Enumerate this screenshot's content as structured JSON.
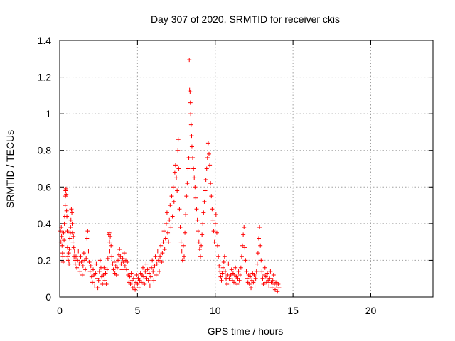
{
  "chart_data": {
    "type": "scatter",
    "title": "Day 307 of 2020, SRMTID for receiver ckis",
    "xlabel": "GPS time / hours",
    "ylabel": "SRMTID / TECUs",
    "xlim": [
      0,
      24
    ],
    "ylim": [
      0,
      1.4
    ],
    "xticks": [
      0,
      5,
      10,
      15,
      20
    ],
    "xtick_labels": [
      "0",
      "5",
      "10",
      "15",
      "20"
    ],
    "yticks": [
      0,
      0.2,
      0.4,
      0.6,
      0.8,
      1.0,
      1.2,
      1.4
    ],
    "ytick_labels": [
      "0",
      "0.2",
      "0.4",
      "0.6",
      "0.8",
      "1",
      "1.2",
      "1.4"
    ],
    "grid": true,
    "marker": "plus",
    "color": "#ff0000",
    "series": [
      {
        "name": "SRMTID",
        "points": [
          [
            0.05,
            0.36
          ],
          [
            0.08,
            0.3
          ],
          [
            0.1,
            0.38
          ],
          [
            0.12,
            0.33
          ],
          [
            0.15,
            0.28
          ],
          [
            0.18,
            0.24
          ],
          [
            0.2,
            0.22
          ],
          [
            0.22,
            0.19
          ],
          [
            0.25,
            0.35
          ],
          [
            0.28,
            0.31
          ],
          [
            0.3,
            0.4
          ],
          [
            0.32,
            0.44
          ],
          [
            0.35,
            0.5
          ],
          [
            0.37,
            0.55
          ],
          [
            0.38,
            0.58
          ],
          [
            0.4,
            0.59
          ],
          [
            0.42,
            0.56
          ],
          [
            0.44,
            0.47
          ],
          [
            0.46,
            0.44
          ],
          [
            0.48,
            0.36
          ],
          [
            0.5,
            0.27
          ],
          [
            0.52,
            0.22
          ],
          [
            0.55,
            0.2
          ],
          [
            0.58,
            0.24
          ],
          [
            0.6,
            0.18
          ],
          [
            0.62,
            0.26
          ],
          [
            0.65,
            0.32
          ],
          [
            0.68,
            0.35
          ],
          [
            0.7,
            0.38
          ],
          [
            0.72,
            0.42
          ],
          [
            0.75,
            0.48
          ],
          [
            0.78,
            0.46
          ],
          [
            0.8,
            0.4
          ],
          [
            0.82,
            0.35
          ],
          [
            0.85,
            0.3
          ],
          [
            0.88,
            0.33
          ],
          [
            0.9,
            0.27
          ],
          [
            0.92,
            0.22
          ],
          [
            0.95,
            0.25
          ],
          [
            0.98,
            0.2
          ],
          [
            1.0,
            0.18
          ],
          [
            1.05,
            0.22
          ],
          [
            1.1,
            0.16
          ],
          [
            1.15,
            0.2
          ],
          [
            1.2,
            0.25
          ],
          [
            1.25,
            0.18
          ],
          [
            1.3,
            0.14
          ],
          [
            1.35,
            0.22
          ],
          [
            1.4,
            0.19
          ],
          [
            1.45,
            0.12
          ],
          [
            1.5,
            0.17
          ],
          [
            1.55,
            0.24
          ],
          [
            1.6,
            0.2
          ],
          [
            1.65,
            0.15
          ],
          [
            1.7,
            0.21
          ],
          [
            1.75,
            0.32
          ],
          [
            1.8,
            0.36
          ],
          [
            1.85,
            0.25
          ],
          [
            1.9,
            0.19
          ],
          [
            1.95,
            0.14
          ],
          [
            2.0,
            0.17
          ],
          [
            2.05,
            0.11
          ],
          [
            2.1,
            0.08
          ],
          [
            2.15,
            0.15
          ],
          [
            2.2,
            0.12
          ],
          [
            2.25,
            0.06
          ],
          [
            2.3,
            0.13
          ],
          [
            2.35,
            0.18
          ],
          [
            2.4,
            0.1
          ],
          [
            2.45,
            0.05
          ],
          [
            2.5,
            0.09
          ],
          [
            2.55,
            0.14
          ],
          [
            2.6,
            0.2
          ],
          [
            2.65,
            0.16
          ],
          [
            2.7,
            0.11
          ],
          [
            2.75,
            0.07
          ],
          [
            2.8,
            0.12
          ],
          [
            2.85,
            0.16
          ],
          [
            2.9,
            0.09
          ],
          [
            2.95,
            0.13
          ],
          [
            3.0,
            0.07
          ],
          [
            3.05,
            0.15
          ],
          [
            3.1,
            0.21
          ],
          [
            3.15,
            0.34
          ],
          [
            3.18,
            0.35
          ],
          [
            3.2,
            0.3
          ],
          [
            3.22,
            0.25
          ],
          [
            3.25,
            0.33
          ],
          [
            3.3,
            0.28
          ],
          [
            3.35,
            0.22
          ],
          [
            3.4,
            0.18
          ],
          [
            3.45,
            0.15
          ],
          [
            3.5,
            0.19
          ],
          [
            3.55,
            0.13
          ],
          [
            3.6,
            0.17
          ],
          [
            3.65,
            0.12
          ],
          [
            3.7,
            0.16
          ],
          [
            3.75,
            0.2
          ],
          [
            3.8,
            0.23
          ],
          [
            3.85,
            0.26
          ],
          [
            3.9,
            0.22
          ],
          [
            3.95,
            0.18
          ],
          [
            4.0,
            0.15
          ],
          [
            4.05,
            0.21
          ],
          [
            4.1,
            0.19
          ],
          [
            4.15,
            0.24
          ],
          [
            4.2,
            0.17
          ],
          [
            4.25,
            0.2
          ],
          [
            4.3,
            0.15
          ],
          [
            4.35,
            0.19
          ],
          [
            4.4,
            0.12
          ],
          [
            4.45,
            0.08
          ],
          [
            4.5,
            0.11
          ],
          [
            4.55,
            0.07
          ],
          [
            4.6,
            0.13
          ],
          [
            4.65,
            0.09
          ],
          [
            4.7,
            0.05
          ],
          [
            4.75,
            0.1
          ],
          [
            4.8,
            0.06
          ],
          [
            4.85,
            0.04
          ],
          [
            4.9,
            0.08
          ],
          [
            4.95,
            0.12
          ],
          [
            5.0,
            0.07
          ],
          [
            5.05,
            0.1
          ],
          [
            5.1,
            0.05
          ],
          [
            5.15,
            0.09
          ],
          [
            5.2,
            0.13
          ],
          [
            5.25,
            0.08
          ],
          [
            5.3,
            0.12
          ],
          [
            5.35,
            0.16
          ],
          [
            5.4,
            0.11
          ],
          [
            5.45,
            0.07
          ],
          [
            5.5,
            0.14
          ],
          [
            5.55,
            0.18
          ],
          [
            5.6,
            0.1
          ],
          [
            5.65,
            0.15
          ],
          [
            5.7,
            0.09
          ],
          [
            5.75,
            0.13
          ],
          [
            5.8,
            0.06
          ],
          [
            5.85,
            0.11
          ],
          [
            5.9,
            0.16
          ],
          [
            5.95,
            0.2
          ],
          [
            6.0,
            0.14
          ],
          [
            6.05,
            0.09
          ],
          [
            6.1,
            0.17
          ],
          [
            6.15,
            0.22
          ],
          [
            6.2,
            0.12
          ],
          [
            6.25,
            0.18
          ],
          [
            6.3,
            0.25
          ],
          [
            6.35,
            0.2
          ],
          [
            6.4,
            0.14
          ],
          [
            6.45,
            0.22
          ],
          [
            6.5,
            0.28
          ],
          [
            6.55,
            0.19
          ],
          [
            6.6,
            0.24
          ],
          [
            6.65,
            0.3
          ],
          [
            6.7,
            0.36
          ],
          [
            6.75,
            0.26
          ],
          [
            6.8,
            0.32
          ],
          [
            6.85,
            0.4
          ],
          [
            6.9,
            0.46
          ],
          [
            6.95,
            0.35
          ],
          [
            7.0,
            0.3
          ],
          [
            7.05,
            0.42
          ],
          [
            7.1,
            0.5
          ],
          [
            7.15,
            0.38
          ],
          [
            7.2,
            0.55
          ],
          [
            7.25,
            0.44
          ],
          [
            7.3,
            0.6
          ],
          [
            7.35,
            0.52
          ],
          [
            7.4,
            0.68
          ],
          [
            7.45,
            0.72
          ],
          [
            7.5,
            0.65
          ],
          [
            7.55,
            0.58
          ],
          [
            7.6,
            0.8
          ],
          [
            7.62,
            0.86
          ],
          [
            7.65,
            0.7
          ],
          [
            7.7,
            0.48
          ],
          [
            7.75,
            0.38
          ],
          [
            7.8,
            0.3
          ],
          [
            7.85,
            0.25
          ],
          [
            7.9,
            0.2
          ],
          [
            7.95,
            0.28
          ],
          [
            8.0,
            0.22
          ],
          [
            8.05,
            0.35
          ],
          [
            8.1,
            0.45
          ],
          [
            8.15,
            0.55
          ],
          [
            8.2,
            0.62
          ],
          [
            8.25,
            0.7
          ],
          [
            8.3,
            0.76
          ],
          [
            8.33,
            1.295
          ],
          [
            8.35,
            1.13
          ],
          [
            8.38,
            1.12
          ],
          [
            8.4,
            1.06
          ],
          [
            8.42,
            1.0
          ],
          [
            8.45,
            0.94
          ],
          [
            8.48,
            0.88
          ],
          [
            8.5,
            0.82
          ],
          [
            8.55,
            0.76
          ],
          [
            8.6,
            0.7
          ],
          [
            8.65,
            0.65
          ],
          [
            8.7,
            0.6
          ],
          [
            8.75,
            0.54
          ],
          [
            8.8,
            0.48
          ],
          [
            8.85,
            0.42
          ],
          [
            8.9,
            0.36
          ],
          [
            8.95,
            0.3
          ],
          [
            9.0,
            0.26
          ],
          [
            9.05,
            0.22
          ],
          [
            9.1,
            0.28
          ],
          [
            9.15,
            0.34
          ],
          [
            9.2,
            0.4
          ],
          [
            9.25,
            0.46
          ],
          [
            9.3,
            0.52
          ],
          [
            9.35,
            0.58
          ],
          [
            9.4,
            0.64
          ],
          [
            9.45,
            0.7
          ],
          [
            9.5,
            0.76
          ],
          [
            9.55,
            0.84
          ],
          [
            9.6,
            0.78
          ],
          [
            9.65,
            0.72
          ],
          [
            9.7,
            0.62
          ],
          [
            9.75,
            0.55
          ],
          [
            9.8,
            0.48
          ],
          [
            9.85,
            0.42
          ],
          [
            9.9,
            0.36
          ],
          [
            9.95,
            0.3
          ],
          [
            10.0,
            0.4
          ],
          [
            10.05,
            0.45
          ],
          [
            10.1,
            0.35
          ],
          [
            10.15,
            0.28
          ],
          [
            10.2,
            0.22
          ],
          [
            10.25,
            0.17
          ],
          [
            10.3,
            0.14
          ],
          [
            10.35,
            0.11
          ],
          [
            10.4,
            0.09
          ],
          [
            10.45,
            0.13
          ],
          [
            10.5,
            0.16
          ],
          [
            10.55,
            0.19
          ],
          [
            10.6,
            0.22
          ],
          [
            10.65,
            0.14
          ],
          [
            10.7,
            0.1
          ],
          [
            10.75,
            0.07
          ],
          [
            10.8,
            0.12
          ],
          [
            10.85,
            0.18
          ],
          [
            10.9,
            0.1
          ],
          [
            10.95,
            0.06
          ],
          [
            11.0,
            0.12
          ],
          [
            11.05,
            0.15
          ],
          [
            11.1,
            0.09
          ],
          [
            11.15,
            0.13
          ],
          [
            11.2,
            0.08
          ],
          [
            11.25,
            0.12
          ],
          [
            11.3,
            0.16
          ],
          [
            11.35,
            0.11
          ],
          [
            11.4,
            0.07
          ],
          [
            11.45,
            0.1
          ],
          [
            11.5,
            0.14
          ],
          [
            11.55,
            0.09
          ],
          [
            11.6,
            0.12
          ],
          [
            11.65,
            0.16
          ],
          [
            11.7,
            0.22
          ],
          [
            11.75,
            0.28
          ],
          [
            11.8,
            0.34
          ],
          [
            11.85,
            0.38
          ],
          [
            11.9,
            0.27
          ],
          [
            11.95,
            0.2
          ],
          [
            12.0,
            0.14
          ],
          [
            12.05,
            0.1
          ],
          [
            12.1,
            0.08
          ],
          [
            12.15,
            0.12
          ],
          [
            12.2,
            0.07
          ],
          [
            12.25,
            0.11
          ],
          [
            12.3,
            0.05
          ],
          [
            12.35,
            0.09
          ],
          [
            12.4,
            0.13
          ],
          [
            12.45,
            0.08
          ],
          [
            12.5,
            0.12
          ],
          [
            12.55,
            0.06
          ],
          [
            12.6,
            0.1
          ],
          [
            12.65,
            0.14
          ],
          [
            12.7,
            0.18
          ],
          [
            12.75,
            0.24
          ],
          [
            12.8,
            0.32
          ],
          [
            12.85,
            0.38
          ],
          [
            12.9,
            0.28
          ],
          [
            12.95,
            0.2
          ],
          [
            13.0,
            0.14
          ],
          [
            13.05,
            0.1
          ],
          [
            13.1,
            0.07
          ],
          [
            13.15,
            0.12
          ],
          [
            13.2,
            0.16
          ],
          [
            13.25,
            0.11
          ],
          [
            13.3,
            0.08
          ],
          [
            13.35,
            0.13
          ],
          [
            13.4,
            0.09
          ],
          [
            13.45,
            0.06
          ],
          [
            13.5,
            0.1
          ],
          [
            13.55,
            0.14
          ],
          [
            13.6,
            0.08
          ],
          [
            13.65,
            0.05
          ],
          [
            13.7,
            0.09
          ],
          [
            13.75,
            0.12
          ],
          [
            13.8,
            0.07
          ],
          [
            13.85,
            0.04
          ],
          [
            13.9,
            0.08
          ],
          [
            13.95,
            0.06
          ],
          [
            14.0,
            0.03
          ],
          [
            14.05,
            0.07
          ],
          [
            14.1,
            0.05
          ]
        ]
      }
    ]
  }
}
